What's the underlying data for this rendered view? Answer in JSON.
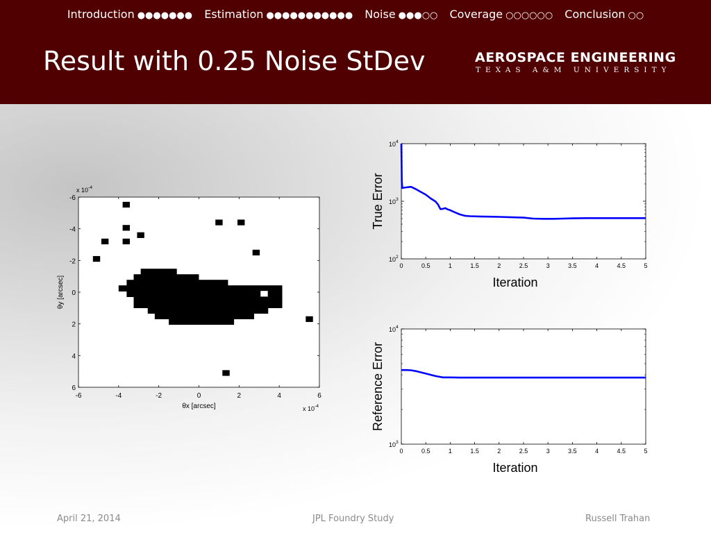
{
  "nav": [
    {
      "label": "Introduction",
      "dots": "●●●●●●●"
    },
    {
      "label": "Estimation",
      "dots": "●●●●●●●●●●●"
    },
    {
      "label": "Noise",
      "dots": "●●●○○"
    },
    {
      "label": "Coverage",
      "dots": "○○○○○○"
    },
    {
      "label": "Conclusion",
      "dots": "○○"
    }
  ],
  "slide": {
    "title": "Result with 0.25 Noise StDev"
  },
  "logo": {
    "main": "AEROSPACE ENGINEERING",
    "sub": "TEXAS A&M UNIVERSITY"
  },
  "footer": {
    "date": "April 21, 2014",
    "center": "JPL Foundry Study",
    "author": "Russell Trahan"
  },
  "colors": {
    "header": "#500000",
    "line": "#0000ff",
    "pixel": "#000000"
  },
  "chart_data": [
    {
      "type": "heatmap",
      "xlabel": "θx [arcsec]",
      "ylabel": "θy [arcsec]",
      "x_scale_note": "x 10",
      "x_scale_exp": "-4",
      "y_scale_note": "x 10",
      "y_scale_exp": "-4",
      "xlim": [
        -6,
        6
      ],
      "ylim": [
        -6,
        6
      ],
      "y_inverted": true,
      "xticks": [
        -6,
        -4,
        -2,
        0,
        2,
        4,
        6
      ],
      "yticks": [
        -6,
        -4,
        -2,
        0,
        2,
        4,
        6
      ],
      "cell_size": 0.36,
      "values_description": "binary pixel map, 1 = black",
      "filled_cells": [
        [
          -3.62,
          -5.52
        ],
        [
          1.0,
          -4.4
        ],
        [
          2.1,
          -4.4
        ],
        [
          -3.62,
          -4.06
        ],
        [
          -4.68,
          -3.2
        ],
        [
          -3.62,
          -3.2
        ],
        [
          -2.9,
          -3.6
        ],
        [
          2.85,
          -2.5
        ],
        [
          -5.1,
          -2.1
        ],
        [
          5.5,
          1.7
        ],
        [
          1.35,
          5.1
        ]
      ],
      "blob_rows": [
        {
          "y": -1.3,
          "x0": -2.9,
          "x1": -1.1
        },
        {
          "y": -0.95,
          "x0": -3.25,
          "x1": 0.0
        },
        {
          "y": -0.6,
          "x0": -3.6,
          "x1": 1.45
        },
        {
          "y": -0.25,
          "x0": -4.0,
          "x1": 4.15
        },
        {
          "y": 0.1,
          "x0": -3.6,
          "x1": 4.15
        },
        {
          "y": 0.45,
          "x0": -3.25,
          "x1": 4.15
        },
        {
          "y": 0.8,
          "x0": -3.25,
          "x1": 4.15
        },
        {
          "y": 1.15,
          "x0": -2.55,
          "x1": 3.45
        },
        {
          "y": 1.5,
          "x0": -2.2,
          "x1": 2.75
        },
        {
          "y": 1.85,
          "x0": -1.5,
          "x1": 1.75
        }
      ],
      "holes": [
        [
          3.25,
          0.1
        ]
      ]
    },
    {
      "type": "line",
      "xlabel": "Iteration",
      "ylabel": "True Error",
      "xlim": [
        0,
        5
      ],
      "ylim": [
        100,
        10000
      ],
      "yscale": "log",
      "xticks": [
        "0",
        "0.5",
        "1",
        "1.5",
        "2",
        "2.5",
        "3",
        "3.5",
        "4",
        "4.5",
        "5"
      ],
      "yticks": [
        {
          "base": "10",
          "exp": "2"
        },
        {
          "base": "10",
          "exp": "3"
        },
        {
          "base": "10",
          "exp": "4"
        }
      ],
      "x": [
        0,
        0.005,
        0.01,
        0.02,
        0.05,
        0.1,
        0.2,
        0.25,
        0.3,
        0.4,
        0.5,
        0.6,
        0.7,
        0.75,
        0.8,
        0.85,
        0.9,
        0.95,
        1.0,
        1.1,
        1.2,
        1.3,
        1.4,
        1.6,
        1.8,
        2.0,
        2.2,
        2.5,
        2.7,
        2.9,
        3.1,
        3.3,
        3.5,
        3.8,
        4.2,
        4.6,
        5.0
      ],
      "y": [
        10000,
        4500,
        2200,
        1700,
        1720,
        1740,
        1780,
        1700,
        1620,
        1450,
        1300,
        1120,
        990,
        880,
        730,
        740,
        760,
        720,
        700,
        640,
        590,
        560,
        550,
        545,
        540,
        535,
        530,
        520,
        500,
        495,
        495,
        500,
        505,
        510,
        510,
        510,
        510
      ]
    },
    {
      "type": "line",
      "xlabel": "Iteration",
      "ylabel": "Reference Error",
      "xlim": [
        0,
        5
      ],
      "ylim": [
        1000,
        10000
      ],
      "yscale": "log",
      "xticks": [
        "0",
        "0.5",
        "1",
        "1.5",
        "2",
        "2.5",
        "3",
        "3.5",
        "4",
        "4.5",
        "5"
      ],
      "yticks": [
        {
          "base": "10",
          "exp": "3"
        },
        {
          "base": "10",
          "exp": "4"
        }
      ],
      "x": [
        0,
        0.1,
        0.2,
        0.3,
        0.5,
        0.7,
        0.85,
        1.0,
        1.2,
        2.0,
        3.0,
        4.0,
        5.0
      ],
      "y": [
        4400,
        4400,
        4380,
        4300,
        4100,
        3900,
        3800,
        3800,
        3780,
        3780,
        3780,
        3780,
        3780
      ]
    }
  ]
}
